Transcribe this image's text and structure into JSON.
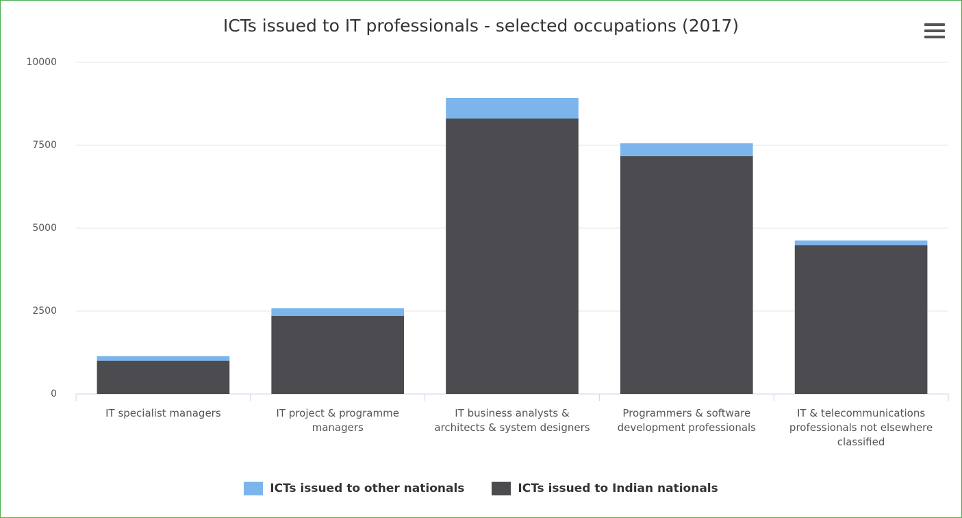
{
  "chart_data": {
    "type": "stacked_bar",
    "title": "ICTs issued to IT professionals - selected occupations (2017)",
    "categories": [
      "IT specialist managers",
      "IT project & programme managers",
      "IT business analysts & architects & system designers",
      "Programmers & software development professionals",
      "IT & telecommunications professionals not elsewhere classified"
    ],
    "series": [
      {
        "name": "ICTs issued to other nationals",
        "color": "#7cb5ec",
        "values": [
          140,
          230,
          620,
          390,
          145
        ]
      },
      {
        "name": "ICTs issued to Indian nationals",
        "color": "#4b4b50",
        "values": [
          1000,
          2355,
          8306,
          7169,
          4483
        ]
      }
    ],
    "ylim": [
      0,
      10000
    ],
    "yticks": [
      0,
      2500,
      5000,
      7500,
      10000
    ],
    "grid": true
  }
}
